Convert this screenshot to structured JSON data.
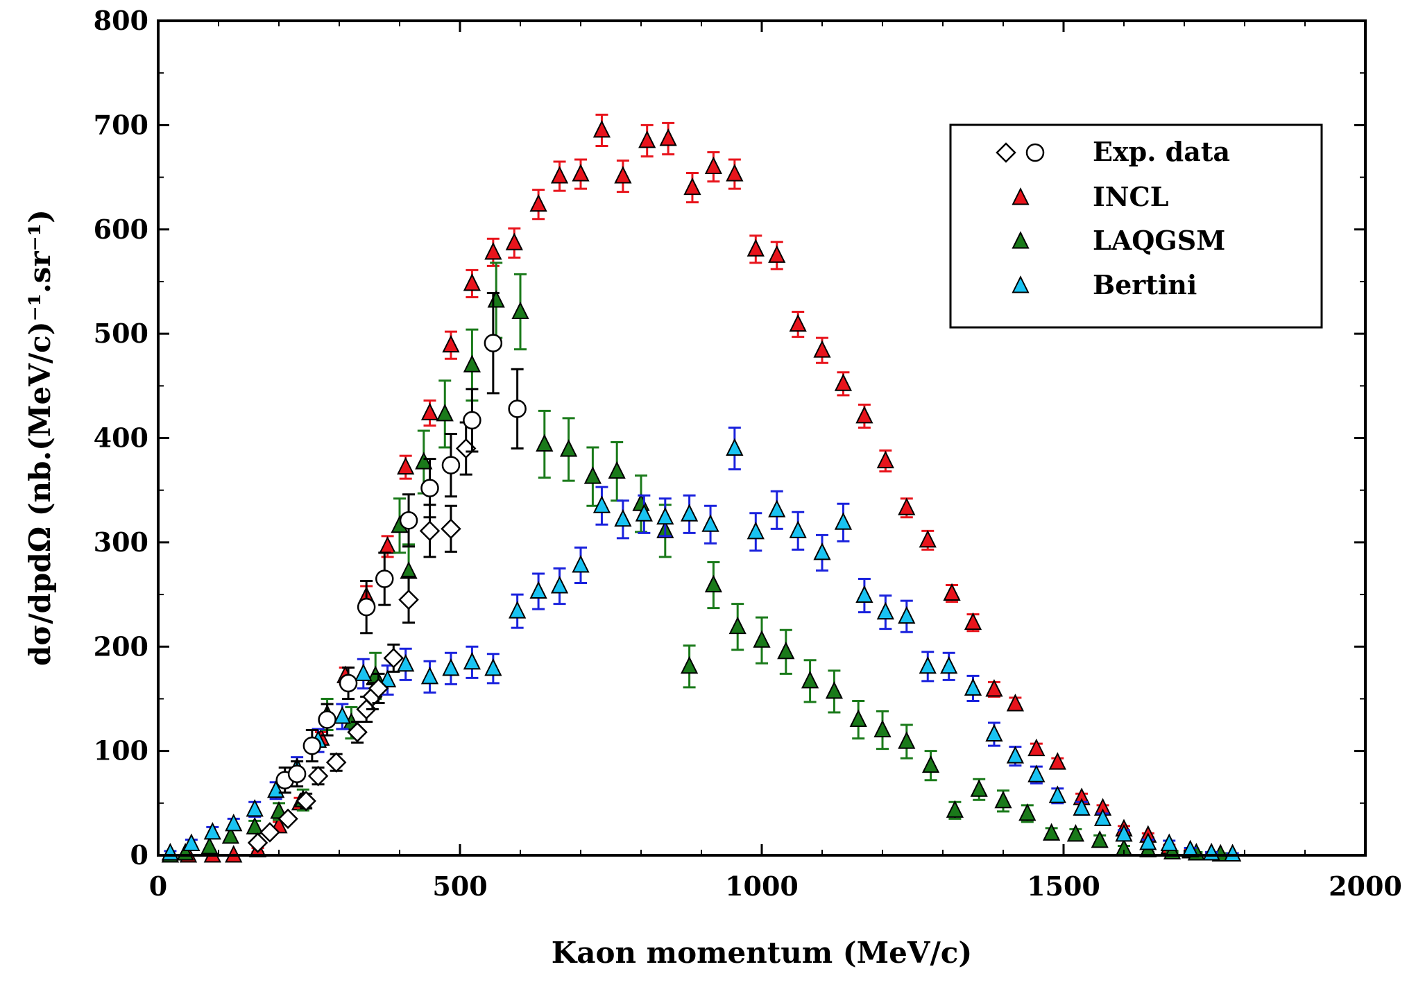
{
  "chart_data": {
    "type": "scatter",
    "title": "",
    "xlabel": "Kaon momentum (MeV/c)",
    "ylabel": "dσ/dpdΩ (nb.(MeV/c)⁻¹.sr⁻¹)",
    "xlim": [
      0,
      2000
    ],
    "ylim": [
      0,
      800
    ],
    "xticks": [
      0,
      500,
      1000,
      1500,
      2000
    ],
    "yticks": [
      0,
      100,
      200,
      300,
      400,
      500,
      600,
      700,
      800
    ],
    "grid": false,
    "legend_position": "top-right",
    "legend": [
      {
        "label": "Exp. data",
        "symbols": [
          "diamond",
          "circle"
        ]
      },
      {
        "label": "INCL",
        "symbols": [
          "triangle"
        ],
        "color": "#e8141c"
      },
      {
        "label": "LAQGSM",
        "symbols": [
          "triangle"
        ],
        "color": "#1a7a1a"
      },
      {
        "label": "Bertini",
        "symbols": [
          "triangle"
        ],
        "color": "#19c3f2"
      }
    ],
    "series": [
      {
        "name": "Exp. data (diamonds)",
        "marker": "diamond",
        "color": "#ffffff",
        "error_color": "#000000",
        "points": [
          [
            165,
            12,
            0
          ],
          [
            185,
            22,
            0
          ],
          [
            215,
            35,
            0
          ],
          [
            245,
            52,
            7
          ],
          [
            265,
            76,
            8
          ],
          [
            295,
            89,
            8
          ],
          [
            330,
            118,
            10
          ],
          [
            345,
            140,
            12
          ],
          [
            355,
            152,
            12
          ],
          [
            365,
            160,
            14
          ],
          [
            390,
            189,
            13
          ],
          [
            415,
            245,
            22
          ],
          [
            450,
            311,
            25
          ],
          [
            485,
            313,
            22
          ],
          [
            510,
            390,
            25
          ]
        ]
      },
      {
        "name": "Exp. data (circles)",
        "marker": "circle",
        "color": "#ffffff",
        "error_color": "#000000",
        "points": [
          [
            210,
            72,
            12
          ],
          [
            230,
            78,
            12
          ],
          [
            255,
            105,
            15
          ],
          [
            280,
            130,
            15
          ],
          [
            315,
            165,
            15
          ],
          [
            345,
            238,
            25
          ],
          [
            375,
            265,
            25
          ],
          [
            415,
            321,
            25
          ],
          [
            450,
            352,
            28
          ],
          [
            485,
            374,
            30
          ],
          [
            520,
            417,
            30
          ],
          [
            555,
            491,
            48
          ],
          [
            595,
            428,
            38
          ]
        ]
      },
      {
        "name": "INCL",
        "marker": "triangle",
        "color": "#e8141c",
        "error_color": "#e8141c",
        "points": [
          [
            20,
            0,
            0
          ],
          [
            50,
            0,
            0
          ],
          [
            90,
            0,
            0
          ],
          [
            125,
            0,
            0
          ],
          [
            165,
            5,
            2
          ],
          [
            200,
            28,
            4
          ],
          [
            235,
            50,
            5
          ],
          [
            270,
            112,
            6
          ],
          [
            310,
            172,
            8
          ],
          [
            345,
            248,
            10
          ],
          [
            380,
            296,
            10
          ],
          [
            410,
            372,
            11
          ],
          [
            450,
            424,
            12
          ],
          [
            485,
            489,
            13
          ],
          [
            520,
            548,
            13
          ],
          [
            555,
            578,
            13
          ],
          [
            590,
            587,
            14
          ],
          [
            630,
            624,
            14
          ],
          [
            665,
            651,
            14
          ],
          [
            700,
            653,
            14
          ],
          [
            735,
            695,
            15
          ],
          [
            770,
            651,
            15
          ],
          [
            810,
            685,
            15
          ],
          [
            845,
            687,
            15
          ],
          [
            885,
            640,
            14
          ],
          [
            920,
            660,
            14
          ],
          [
            955,
            653,
            14
          ],
          [
            990,
            581,
            13
          ],
          [
            1025,
            575,
            13
          ],
          [
            1060,
            509,
            12
          ],
          [
            1100,
            484,
            12
          ],
          [
            1135,
            452,
            11
          ],
          [
            1170,
            421,
            11
          ],
          [
            1205,
            378,
            10
          ],
          [
            1240,
            333,
            9
          ],
          [
            1275,
            302,
            9
          ],
          [
            1315,
            251,
            8
          ],
          [
            1350,
            223,
            8
          ],
          [
            1385,
            159,
            7
          ],
          [
            1420,
            145,
            6
          ],
          [
            1455,
            102,
            5
          ],
          [
            1490,
            89,
            4
          ],
          [
            1530,
            55,
            4
          ],
          [
            1565,
            45,
            3
          ],
          [
            1600,
            25,
            3
          ],
          [
            1640,
            19,
            2
          ],
          [
            1675,
            8,
            2
          ],
          [
            1710,
            4,
            1
          ],
          [
            1745,
            2,
            1
          ],
          [
            1780,
            1,
            1
          ]
        ]
      },
      {
        "name": "LAQGSM",
        "marker": "triangle",
        "color": "#1a7a1a",
        "error_color": "#1a7a1a",
        "points": [
          [
            20,
            0,
            0
          ],
          [
            45,
            2,
            0
          ],
          [
            85,
            8,
            0
          ],
          [
            120,
            18,
            0
          ],
          [
            160,
            27,
            6
          ],
          [
            200,
            42,
            8
          ],
          [
            240,
            53,
            10
          ],
          [
            280,
            135,
            15
          ],
          [
            320,
            127,
            15
          ],
          [
            360,
            172,
            22
          ],
          [
            400,
            316,
            26
          ],
          [
            415,
            272,
            26
          ],
          [
            440,
            377,
            30
          ],
          [
            475,
            423,
            32
          ],
          [
            520,
            470,
            34
          ],
          [
            560,
            532,
            36
          ],
          [
            600,
            521,
            36
          ],
          [
            640,
            394,
            32
          ],
          [
            680,
            389,
            30
          ],
          [
            720,
            363,
            28
          ],
          [
            760,
            368,
            28
          ],
          [
            800,
            337,
            27
          ],
          [
            840,
            311,
            25
          ],
          [
            880,
            181,
            20
          ],
          [
            920,
            259,
            22
          ],
          [
            960,
            219,
            22
          ],
          [
            1000,
            206,
            22
          ],
          [
            1040,
            195,
            21
          ],
          [
            1080,
            167,
            20
          ],
          [
            1120,
            157,
            20
          ],
          [
            1160,
            130,
            18
          ],
          [
            1200,
            120,
            18
          ],
          [
            1240,
            109,
            16
          ],
          [
            1280,
            86,
            14
          ],
          [
            1320,
            43,
            8
          ],
          [
            1360,
            63,
            10
          ],
          [
            1400,
            52,
            10
          ],
          [
            1440,
            40,
            8
          ],
          [
            1480,
            21,
            5
          ],
          [
            1520,
            20,
            5
          ],
          [
            1560,
            14,
            5
          ],
          [
            1600,
            6,
            3
          ],
          [
            1640,
            5,
            2
          ],
          [
            1680,
            3,
            1
          ],
          [
            1720,
            2,
            1
          ],
          [
            1760,
            1,
            1
          ]
        ]
      },
      {
        "name": "Bertini",
        "marker": "triangle",
        "color": "#19c3f2",
        "error_color": "#1a22dd",
        "points": [
          [
            20,
            2,
            2
          ],
          [
            55,
            11,
            4
          ],
          [
            90,
            22,
            5
          ],
          [
            125,
            30,
            5
          ],
          [
            160,
            44,
            7
          ],
          [
            195,
            62,
            8
          ],
          [
            230,
            84,
            10
          ],
          [
            265,
            110,
            11
          ],
          [
            305,
            133,
            12
          ],
          [
            340,
            174,
            14
          ],
          [
            380,
            168,
            14
          ],
          [
            410,
            183,
            15
          ],
          [
            450,
            171,
            15
          ],
          [
            485,
            179,
            15
          ],
          [
            520,
            185,
            15
          ],
          [
            555,
            179,
            14
          ],
          [
            595,
            234,
            16
          ],
          [
            630,
            253,
            17
          ],
          [
            665,
            258,
            17
          ],
          [
            700,
            278,
            17
          ],
          [
            735,
            335,
            18
          ],
          [
            770,
            322,
            18
          ],
          [
            805,
            327,
            18
          ],
          [
            840,
            324,
            18
          ],
          [
            880,
            327,
            18
          ],
          [
            915,
            317,
            18
          ],
          [
            955,
            390,
            20
          ],
          [
            990,
            310,
            18
          ],
          [
            1025,
            331,
            18
          ],
          [
            1060,
            311,
            18
          ],
          [
            1100,
            290,
            17
          ],
          [
            1135,
            319,
            18
          ],
          [
            1170,
            249,
            16
          ],
          [
            1205,
            233,
            16
          ],
          [
            1240,
            229,
            15
          ],
          [
            1275,
            181,
            14
          ],
          [
            1310,
            181,
            13
          ],
          [
            1350,
            160,
            12
          ],
          [
            1385,
            116,
            11
          ],
          [
            1420,
            95,
            9
          ],
          [
            1455,
            77,
            8
          ],
          [
            1490,
            57,
            7
          ],
          [
            1530,
            45,
            6
          ],
          [
            1565,
            35,
            5
          ],
          [
            1600,
            20,
            4
          ],
          [
            1640,
            12,
            3
          ],
          [
            1675,
            11,
            3
          ],
          [
            1710,
            5,
            2
          ],
          [
            1745,
            2,
            1
          ],
          [
            1780,
            1,
            1
          ]
        ]
      }
    ]
  }
}
